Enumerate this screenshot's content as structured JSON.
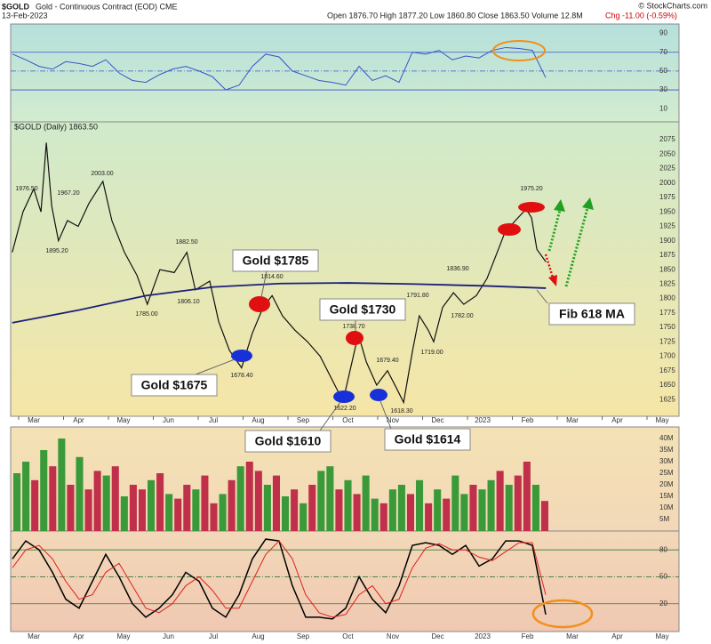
{
  "header": {
    "symbol": "$GOLD",
    "name": "Gold - Continuous Contract (EOD) CME",
    "date": "13-Feb-2023",
    "quote": "Open 1876.70 High 1877.20 Low 1860.80 Close 1863.50 Volume 12.8M",
    "change": "Chg -11.00 (-0.59%)",
    "credit": "© StockCharts.com"
  },
  "chart_data": [
    {
      "type": "rsi",
      "color": "#3a55c8",
      "ylim": [
        -4,
        100
      ],
      "yticks": [
        10,
        30,
        50,
        70,
        90
      ],
      "reference_lines": [
        70,
        50,
        30
      ],
      "values": [
        68,
        62,
        55,
        52,
        60,
        58,
        55,
        62,
        48,
        40,
        38,
        46,
        52,
        55,
        50,
        44,
        30,
        35,
        55,
        68,
        65,
        50,
        45,
        40,
        38,
        35,
        55,
        40,
        45,
        38,
        70,
        68,
        72,
        62,
        66,
        64,
        72,
        75,
        74,
        72,
        43
      ]
    },
    {
      "type": "price",
      "title": "$GOLD (Daily) 1863.50",
      "ylim": [
        1596,
        2106
      ],
      "yticks": [
        1625,
        1650,
        1675,
        1700,
        1725,
        1750,
        1775,
        1800,
        1825,
        1850,
        1875,
        1900,
        1925,
        1950,
        1975,
        2000,
        2025,
        2050,
        2075
      ],
      "xlim": [
        2.5,
        17.35
      ],
      "xticks": [
        {
          "value": 3,
          "label": "Mar"
        },
        {
          "value": 4,
          "label": "Apr"
        },
        {
          "value": 5,
          "label": "May"
        },
        {
          "value": 6,
          "label": "Jun"
        },
        {
          "value": 7,
          "label": "Jul"
        },
        {
          "value": 8,
          "label": "Aug"
        },
        {
          "value": 9,
          "label": "Sep"
        },
        {
          "value": 10,
          "label": "Oct"
        },
        {
          "value": 11,
          "label": "Nov"
        },
        {
          "value": 12,
          "label": "Dec"
        },
        {
          "value": 13,
          "label": "2023"
        },
        {
          "value": 14,
          "label": "Feb"
        },
        {
          "value": 15,
          "label": "Mar"
        },
        {
          "value": 16,
          "label": "Apr"
        },
        {
          "value": 17,
          "label": "May"
        }
      ],
      "series": [
        {
          "color": "#111111",
          "x": [
            2.52,
            2.76,
            3.0,
            3.16,
            3.28,
            3.4,
            3.55,
            3.75,
            3.99,
            4.23,
            4.54,
            4.74,
            5.02,
            5.3,
            5.53,
            5.81,
            6.13,
            6.41,
            6.6,
            6.92,
            7.12,
            7.36,
            7.63,
            7.87,
            8.11,
            8.31,
            8.54,
            8.82,
            9.1,
            9.38,
            9.61,
            9.89,
            10.09,
            10.23,
            10.41,
            10.64,
            10.88,
            11.08,
            11.24,
            11.44,
            11.59,
            11.79,
            11.91,
            12.11,
            12.35,
            12.58,
            12.86,
            13.1,
            13.3,
            13.5,
            13.73,
            13.97,
            14.09,
            14.21,
            14.41
          ],
          "values": [
            1880,
            1950,
            1990,
            1950,
            2070,
            1960,
            1900,
            1935,
            1925,
            1965,
            2003,
            1935,
            1880,
            1840,
            1790,
            1850,
            1845,
            1880,
            1815,
            1830,
            1760,
            1710,
            1680,
            1740,
            1785,
            1805,
            1770,
            1745,
            1725,
            1700,
            1665,
            1622,
            1690,
            1738,
            1690,
            1650,
            1675,
            1645,
            1620,
            1710,
            1770,
            1745,
            1725,
            1785,
            1810,
            1790,
            1805,
            1835,
            1875,
            1915,
            1935,
            1955,
            1940,
            1885,
            1863.5
          ]
        },
        {
          "color": "#1a1f7a",
          "x": [
            2.52,
            4,
            5.5,
            7,
            8.5,
            10,
            11.5,
            13,
            14.41
          ],
          "values": [
            1758,
            1780,
            1805,
            1820,
            1826,
            1827,
            1825,
            1822,
            1818
          ]
        }
      ],
      "point_labels": [
        "1976.50",
        "1967.20",
        "1895.20",
        "2003.00",
        "1785.00",
        "1882.50",
        "1806.10",
        "1814.60",
        "1678.40",
        "1738.70",
        "1679.40",
        "1622.20",
        "1618.30",
        "1791.80",
        "1836.90",
        "1782.00",
        "1719.00",
        "1975.20"
      ],
      "callouts": [
        "Gold $1785",
        "Gold $1675",
        "Gold $1730",
        "Gold $1610",
        "Gold $1614",
        "Fib 618 MA"
      ]
    },
    {
      "type": "bar",
      "ylim": [
        0,
        45
      ],
      "yticks": [
        {
          "value": 5,
          "label": "5M"
        },
        {
          "value": 10,
          "label": "10M"
        },
        {
          "value": 15,
          "label": "15M"
        },
        {
          "value": 20,
          "label": "20M"
        },
        {
          "value": 25,
          "label": "25M"
        },
        {
          "value": 30,
          "label": "30M"
        },
        {
          "value": 35,
          "label": "35M"
        },
        {
          "value": 40,
          "label": "40M"
        }
      ],
      "values": [
        25,
        30,
        22,
        35,
        28,
        40,
        20,
        32,
        18,
        26,
        24,
        28,
        15,
        20,
        18,
        22,
        25,
        16,
        14,
        20,
        18,
        24,
        12,
        16,
        22,
        28,
        30,
        26,
        20,
        24,
        15,
        18,
        12,
        20,
        26,
        28,
        18,
        22,
        16,
        24,
        14,
        12,
        18,
        20,
        16,
        22,
        12,
        18,
        14,
        24,
        16,
        20,
        18,
        22,
        26,
        20,
        24,
        30,
        20,
        13
      ],
      "colors": [
        "#3a9a3a",
        "#3a9a3a",
        "#c0304a",
        "#3a9a3a",
        "#c0304a",
        "#3a9a3a",
        "#c0304a",
        "#3a9a3a",
        "#c0304a",
        "#c0304a",
        "#3a9a3a",
        "#c0304a",
        "#3a9a3a",
        "#c0304a",
        "#c0304a",
        "#3a9a3a",
        "#c0304a",
        "#3a9a3a",
        "#c0304a",
        "#c0304a",
        "#3a9a3a",
        "#c0304a",
        "#c0304a",
        "#3a9a3a",
        "#c0304a",
        "#3a9a3a",
        "#c0304a",
        "#c0304a",
        "#3a9a3a",
        "#c0304a",
        "#3a9a3a",
        "#c0304a",
        "#3a9a3a",
        "#c0304a",
        "#3a9a3a",
        "#3a9a3a",
        "#c0304a",
        "#3a9a3a",
        "#c0304a",
        "#3a9a3a",
        "#3a9a3a",
        "#c0304a",
        "#3a9a3a",
        "#3a9a3a",
        "#c0304a",
        "#3a9a3a",
        "#c0304a",
        "#3a9a3a",
        "#c0304a",
        "#3a9a3a",
        "#3a9a3a",
        "#c0304a",
        "#3a9a3a",
        "#3a9a3a",
        "#c0304a",
        "#3a9a3a",
        "#c0304a",
        "#c0304a",
        "#3a9a3a",
        "#c0304a"
      ]
    },
    {
      "type": "stoch",
      "ylim": [
        -11,
        101
      ],
      "yticks": [
        20,
        50,
        80
      ],
      "reference_lines": [
        80,
        50,
        20
      ],
      "series": [
        {
          "color": "#000000",
          "values": [
            70,
            90,
            80,
            55,
            25,
            15,
            45,
            75,
            50,
            20,
            5,
            15,
            30,
            55,
            45,
            15,
            5,
            30,
            70,
            92,
            90,
            40,
            5,
            5,
            3,
            15,
            50,
            25,
            10,
            40,
            85,
            88,
            85,
            75,
            85,
            62,
            70,
            90,
            90,
            85,
            8
          ]
        },
        {
          "color": "#e02020",
          "values": [
            60,
            80,
            85,
            70,
            45,
            25,
            30,
            55,
            65,
            40,
            15,
            10,
            20,
            40,
            50,
            35,
            15,
            15,
            45,
            75,
            90,
            70,
            30,
            10,
            5,
            8,
            30,
            40,
            20,
            25,
            60,
            82,
            87,
            80,
            80,
            72,
            68,
            78,
            88,
            88,
            30
          ]
        }
      ]
    }
  ]
}
